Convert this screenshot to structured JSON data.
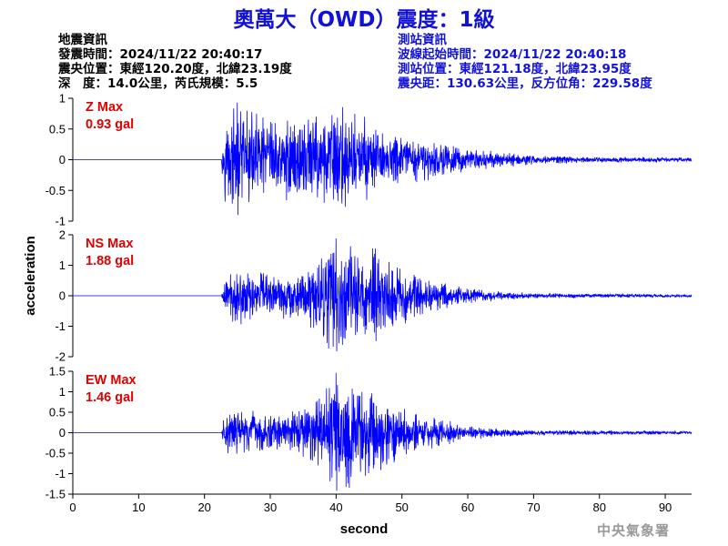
{
  "title": "奧萬大（OWD）震度：1級",
  "earthquake_info": {
    "heading": "地震資訊",
    "origin_time": "發震時間：2024/11/22 20:40:17",
    "epicenter": "震央位置：東經120.20度，北緯23.19度",
    "depth_magnitude": "深　度：14.0公里，芮氏規模：5.5"
  },
  "station_info": {
    "heading": "測站資訊",
    "wave_start": "波線起始時間：2024/11/22 20:40:18",
    "location": "測站位置：東經121.18度，北緯23.95度",
    "distance": "震央距：130.63公里，反方位角：229.58度"
  },
  "credit": "中央氣象署",
  "colors": {
    "trace": "#0000ff",
    "annotation": "#e00000",
    "title": "#1212d6",
    "axis": "#000000"
  },
  "chart_data": {
    "type": "line",
    "xlabel": "second",
    "ylabel": "acceleration",
    "xlim": [
      0,
      94
    ],
    "xticks": [
      0,
      10,
      20,
      30,
      40,
      50,
      60,
      70,
      80,
      90
    ],
    "grid": false,
    "panels": [
      {
        "component": "Z",
        "annotation": [
          "Z Max",
          "0.93 gal"
        ],
        "ylim": [
          -1,
          1
        ],
        "yticks": [
          1,
          0.5,
          0,
          -0.5,
          -1
        ],
        "peak": 0.93,
        "onset": 22.6,
        "envelope": [
          [
            0,
            0.0
          ],
          [
            22.5,
            0.0
          ],
          [
            23,
            0.5
          ],
          [
            25,
            0.7
          ],
          [
            28,
            0.6
          ],
          [
            30,
            0.55
          ],
          [
            33,
            0.58
          ],
          [
            38,
            0.62
          ],
          [
            40,
            0.7
          ],
          [
            42,
            0.6
          ],
          [
            45,
            0.5
          ],
          [
            48,
            0.4
          ],
          [
            52,
            0.3
          ],
          [
            55,
            0.25
          ],
          [
            60,
            0.15
          ],
          [
            65,
            0.1
          ],
          [
            70,
            0.06
          ],
          [
            80,
            0.04
          ],
          [
            94,
            0.03
          ]
        ]
      },
      {
        "component": "NS",
        "annotation": [
          "NS Max",
          "1.88 gal"
        ],
        "ylim": [
          -2,
          2
        ],
        "yticks": [
          2,
          1,
          0,
          -1,
          -2
        ],
        "peak": 1.88,
        "onset": 22.6,
        "envelope": [
          [
            0,
            0.0
          ],
          [
            22.5,
            0.0
          ],
          [
            23,
            0.35
          ],
          [
            25,
            0.55
          ],
          [
            28,
            0.45
          ],
          [
            30,
            0.4
          ],
          [
            33,
            0.45
          ],
          [
            36,
            0.6
          ],
          [
            38,
            0.9
          ],
          [
            40,
            1.1
          ],
          [
            42,
            1.0
          ],
          [
            44,
            0.95
          ],
          [
            46,
            1.0
          ],
          [
            48,
            0.7
          ],
          [
            52,
            0.4
          ],
          [
            55,
            0.3
          ],
          [
            60,
            0.15
          ],
          [
            65,
            0.08
          ],
          [
            70,
            0.05
          ],
          [
            80,
            0.04
          ],
          [
            94,
            0.03
          ]
        ]
      },
      {
        "component": "EW",
        "annotation": [
          "EW Max",
          "1.46 gal"
        ],
        "ylim": [
          -1.5,
          1.5
        ],
        "yticks": [
          1.5,
          1,
          0.5,
          0,
          -0.5,
          -1,
          -1.5
        ],
        "peak": 1.46,
        "onset": 22.6,
        "envelope": [
          [
            0,
            0.0
          ],
          [
            22.5,
            0.0
          ],
          [
            23,
            0.3
          ],
          [
            25,
            0.45
          ],
          [
            28,
            0.35
          ],
          [
            30,
            0.3
          ],
          [
            33,
            0.35
          ],
          [
            36,
            0.5
          ],
          [
            38,
            0.75
          ],
          [
            40,
            1.0
          ],
          [
            42,
            0.95
          ],
          [
            44,
            0.8
          ],
          [
            46,
            0.75
          ],
          [
            48,
            0.55
          ],
          [
            52,
            0.35
          ],
          [
            55,
            0.25
          ],
          [
            60,
            0.12
          ],
          [
            65,
            0.07
          ],
          [
            70,
            0.05
          ],
          [
            80,
            0.04
          ],
          [
            94,
            0.03
          ]
        ]
      }
    ]
  }
}
